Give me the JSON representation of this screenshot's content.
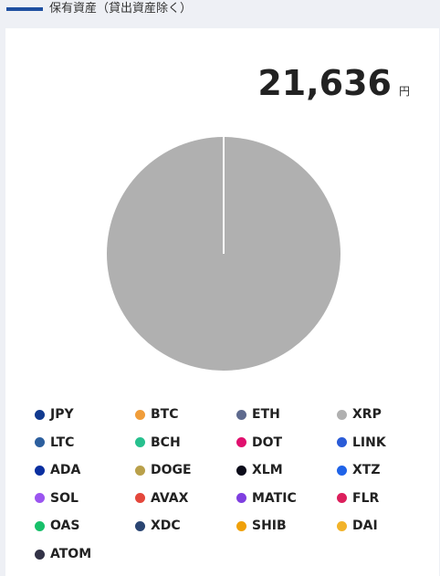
{
  "header": {
    "title": "保有資産（貸出資産除く）",
    "accent_color": "#1f4fa0"
  },
  "total": {
    "value": "21,636",
    "unit": "円"
  },
  "chart_data": {
    "type": "pie",
    "categories": [
      "JPY",
      "BTC",
      "ETH",
      "XRP",
      "LTC",
      "BCH",
      "DOT",
      "LINK",
      "ADA",
      "DOGE",
      "XLM",
      "XTZ",
      "SOL",
      "AVAX",
      "MATIC",
      "FLR",
      "OAS",
      "XDC",
      "SHIB",
      "DAI",
      "ATOM"
    ],
    "values": [
      0,
      0,
      0,
      100,
      0,
      0,
      0,
      0,
      0,
      0,
      0,
      0,
      0,
      0,
      0,
      0,
      0,
      0,
      0,
      0,
      0
    ],
    "colors": [
      "#123a8f",
      "#f09d3a",
      "#5e6a8e",
      "#b0b0b0",
      "#2c5f9e",
      "#27c08e",
      "#e0106e",
      "#2a5bd7",
      "#0a2fa0",
      "#b9a04a",
      "#0c0c1a",
      "#1f63e8",
      "#9b55f0",
      "#e4473b",
      "#7f3fe0",
      "#dc1f5c",
      "#18c06a",
      "#2a4572",
      "#f0a10a",
      "#f2b32a",
      "#333347"
    ],
    "legend_position": "bottom"
  }
}
